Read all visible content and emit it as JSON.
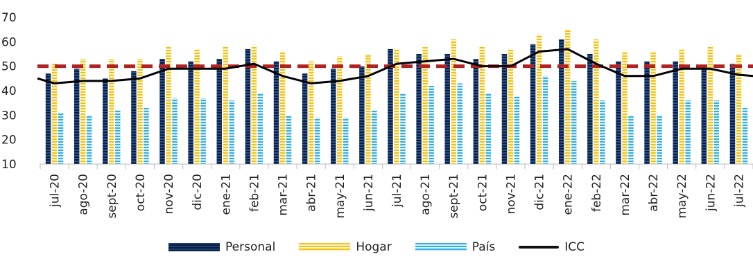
{
  "chart_data": {
    "type": "bar",
    "categories": [
      "jul-20",
      "ago-20",
      "sept-20",
      "oct-20",
      "nov-20",
      "dic-20",
      "ene-21",
      "feb-21",
      "mar-21",
      "abr-21",
      "may-21",
      "jun-21",
      "jul-21",
      "ago-21",
      "sept-21",
      "oct-21",
      "nov-21",
      "dic-21",
      "ene-22",
      "feb-22",
      "mar-22",
      "abr-22",
      "may-22",
      "jun-22",
      "jul-22"
    ],
    "series": [
      {
        "name": "Personal",
        "type": "bar",
        "color": "#0f2a55",
        "values": [
          47,
          49,
          45,
          48,
          53,
          52,
          53,
          57,
          52,
          47,
          49,
          50,
          57,
          55,
          55,
          53,
          55,
          59,
          61,
          55,
          52,
          52,
          52,
          49,
          51
        ]
      },
      {
        "name": "Hogar",
        "type": "bar",
        "color": "#f3c21a",
        "values": [
          51,
          53,
          53,
          53,
          58,
          57,
          58,
          58,
          56,
          52,
          54,
          55,
          57,
          58,
          61,
          58,
          57,
          63,
          65,
          61,
          56,
          56,
          57,
          58,
          55
        ]
      },
      {
        "name": "País",
        "type": "bar",
        "color": "#33aee6",
        "values": [
          31,
          30,
          32,
          33,
          37,
          37,
          36,
          39,
          30,
          29,
          29,
          32,
          39,
          42,
          43,
          39,
          38,
          46,
          44,
          36,
          30,
          30,
          36,
          36,
          33
        ]
      },
      {
        "name": "ICC",
        "type": "line",
        "color": "#000000",
        "values": [
          43,
          44,
          44,
          45,
          49,
          49,
          49,
          51,
          46,
          43,
          44,
          46,
          51,
          52,
          53,
          50,
          50,
          56,
          57,
          51,
          46,
          46,
          49,
          49,
          46.5
        ]
      }
    ],
    "reference_line": {
      "value": 50,
      "color": "#b22222",
      "style": "dashed"
    },
    "ylim": [
      10,
      70
    ],
    "yticks": [
      10,
      20,
      30,
      40,
      50,
      60,
      70
    ],
    "title": "",
    "xlabel": "",
    "ylabel": "",
    "legend": "bottom"
  }
}
